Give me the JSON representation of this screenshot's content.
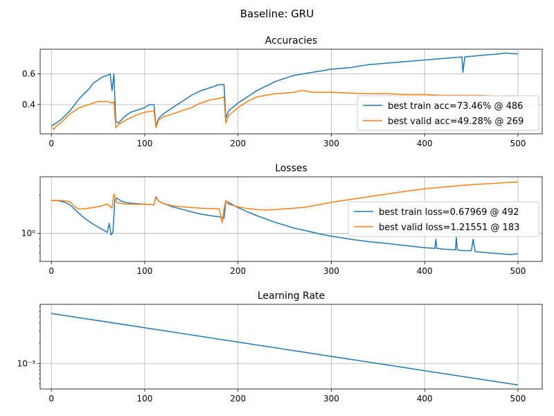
{
  "figure": {
    "suptitle": "Baseline: GRU"
  },
  "colors": {
    "train": "#1f77b4",
    "valid": "#ff7f0e",
    "grid": "#b0b0b0"
  },
  "chart_data": [
    {
      "type": "line",
      "title": "Accuracies",
      "xlabel": "",
      "ylabel": "",
      "xlim": [
        -12,
        526
      ],
      "ylim": [
        0.21,
        0.76
      ],
      "yscale": "linear",
      "xticks": [
        0,
        100,
        200,
        300,
        400,
        500
      ],
      "xtick_labels": [
        "0",
        "100",
        "200",
        "300",
        "400",
        "500"
      ],
      "yticks": [
        0.4,
        0.6
      ],
      "ytick_labels": [
        "0.4",
        "0.6"
      ],
      "grid": true,
      "legend_position": "lower-right",
      "series": [
        {
          "name": "best train acc=73.46% @ 486",
          "color_key": "train",
          "points": [
            [
              0,
              0.26
            ],
            [
              5,
              0.28
            ],
            [
              10,
              0.3
            ],
            [
              15,
              0.33
            ],
            [
              20,
              0.36
            ],
            [
              25,
              0.4
            ],
            [
              30,
              0.44
            ],
            [
              35,
              0.47
            ],
            [
              40,
              0.5
            ],
            [
              45,
              0.54
            ],
            [
              50,
              0.56
            ],
            [
              55,
              0.58
            ],
            [
              60,
              0.59
            ],
            [
              63,
              0.6
            ],
            [
              65,
              0.49
            ],
            [
              67,
              0.6
            ],
            [
              69,
              0.29
            ],
            [
              72,
              0.28
            ],
            [
              75,
              0.3
            ],
            [
              80,
              0.33
            ],
            [
              85,
              0.35
            ],
            [
              90,
              0.36
            ],
            [
              95,
              0.37
            ],
            [
              100,
              0.38
            ],
            [
              105,
              0.4
            ],
            [
              110,
              0.4
            ],
            [
              112,
              0.26
            ],
            [
              115,
              0.31
            ],
            [
              120,
              0.34
            ],
            [
              130,
              0.38
            ],
            [
              140,
              0.42
            ],
            [
              150,
              0.46
            ],
            [
              160,
              0.49
            ],
            [
              170,
              0.51
            ],
            [
              180,
              0.53
            ],
            [
              185,
              0.53
            ],
            [
              187,
              0.31
            ],
            [
              190,
              0.36
            ],
            [
              200,
              0.41
            ],
            [
              210,
              0.45
            ],
            [
              220,
              0.49
            ],
            [
              230,
              0.52
            ],
            [
              240,
              0.55
            ],
            [
              250,
              0.57
            ],
            [
              260,
              0.59
            ],
            [
              270,
              0.6
            ],
            [
              280,
              0.61
            ],
            [
              290,
              0.62
            ],
            [
              300,
              0.63
            ],
            [
              320,
              0.64
            ],
            [
              340,
              0.66
            ],
            [
              360,
              0.67
            ],
            [
              380,
              0.68
            ],
            [
              400,
              0.69
            ],
            [
              420,
              0.7
            ],
            [
              440,
              0.71
            ],
            [
              441,
              0.61
            ],
            [
              443,
              0.71
            ],
            [
              460,
              0.72
            ],
            [
              480,
              0.73
            ],
            [
              486,
              0.735
            ],
            [
              500,
              0.73
            ]
          ]
        },
        {
          "name": "best valid acc=49.28% @ 269",
          "color_key": "valid",
          "points": [
            [
              0,
              0.25
            ],
            [
              3,
              0.24
            ],
            [
              5,
              0.26
            ],
            [
              10,
              0.28
            ],
            [
              15,
              0.31
            ],
            [
              20,
              0.34
            ],
            [
              25,
              0.36
            ],
            [
              30,
              0.38
            ],
            [
              35,
              0.39
            ],
            [
              40,
              0.4
            ],
            [
              45,
              0.41
            ],
            [
              50,
              0.42
            ],
            [
              55,
              0.42
            ],
            [
              60,
              0.42
            ],
            [
              65,
              0.41
            ],
            [
              67,
              0.42
            ],
            [
              69,
              0.25
            ],
            [
              72,
              0.27
            ],
            [
              80,
              0.3
            ],
            [
              90,
              0.33
            ],
            [
              100,
              0.35
            ],
            [
              110,
              0.36
            ],
            [
              112,
              0.25
            ],
            [
              115,
              0.3
            ],
            [
              120,
              0.32
            ],
            [
              130,
              0.34
            ],
            [
              140,
              0.36
            ],
            [
              150,
              0.38
            ],
            [
              160,
              0.41
            ],
            [
              170,
              0.43
            ],
            [
              180,
              0.44
            ],
            [
              185,
              0.45
            ],
            [
              187,
              0.28
            ],
            [
              190,
              0.33
            ],
            [
              200,
              0.38
            ],
            [
              210,
              0.42
            ],
            [
              220,
              0.45
            ],
            [
              230,
              0.46
            ],
            [
              240,
              0.47
            ],
            [
              250,
              0.475
            ],
            [
              260,
              0.48
            ],
            [
              269,
              0.4928
            ],
            [
              280,
              0.48
            ],
            [
              300,
              0.48
            ],
            [
              320,
              0.475
            ],
            [
              340,
              0.47
            ],
            [
              360,
              0.47
            ],
            [
              380,
              0.465
            ],
            [
              400,
              0.465
            ],
            [
              420,
              0.46
            ],
            [
              440,
              0.46
            ],
            [
              460,
              0.46
            ],
            [
              480,
              0.455
            ],
            [
              500,
              0.455
            ]
          ]
        }
      ]
    },
    {
      "type": "line",
      "title": "Losses",
      "xlabel": "",
      "ylabel": "",
      "xlim": [
        -12,
        526
      ],
      "ylim": [
        0.6,
        2.8
      ],
      "yscale": "log",
      "xticks": [
        0,
        100,
        200,
        300,
        400,
        500
      ],
      "xtick_labels": [
        "0",
        "100",
        "200",
        "300",
        "400",
        "500"
      ],
      "yticks": [
        1.0
      ],
      "ytick_labels": [
        "10⁰"
      ],
      "grid": true,
      "legend_position": "right",
      "series": [
        {
          "name": "best train loss=0.67969 @ 492",
          "color_key": "train",
          "points": [
            [
              0,
              1.82
            ],
            [
              5,
              1.82
            ],
            [
              10,
              1.8
            ],
            [
              15,
              1.75
            ],
            [
              20,
              1.68
            ],
            [
              25,
              1.55
            ],
            [
              30,
              1.43
            ],
            [
              35,
              1.33
            ],
            [
              40,
              1.25
            ],
            [
              45,
              1.18
            ],
            [
              50,
              1.12
            ],
            [
              55,
              1.07
            ],
            [
              60,
              1.02
            ],
            [
              62,
              1.2
            ],
            [
              64,
              0.97
            ],
            [
              66,
              1.02
            ],
            [
              68,
              1.85
            ],
            [
              70,
              1.9
            ],
            [
              75,
              1.8
            ],
            [
              80,
              1.75
            ],
            [
              90,
              1.72
            ],
            [
              100,
              1.7
            ],
            [
              110,
              1.68
            ],
            [
              112,
              1.95
            ],
            [
              115,
              1.8
            ],
            [
              120,
              1.72
            ],
            [
              130,
              1.62
            ],
            [
              140,
              1.55
            ],
            [
              150,
              1.48
            ],
            [
              160,
              1.42
            ],
            [
              170,
              1.38
            ],
            [
              180,
              1.35
            ],
            [
              185,
              1.32
            ],
            [
              187,
              1.8
            ],
            [
              190,
              1.75
            ],
            [
              200,
              1.6
            ],
            [
              210,
              1.48
            ],
            [
              220,
              1.38
            ],
            [
              230,
              1.3
            ],
            [
              240,
              1.22
            ],
            [
              250,
              1.16
            ],
            [
              260,
              1.1
            ],
            [
              270,
              1.06
            ],
            [
              280,
              1.02
            ],
            [
              290,
              0.98
            ],
            [
              300,
              0.95
            ],
            [
              320,
              0.9
            ],
            [
              340,
              0.86
            ],
            [
              360,
              0.83
            ],
            [
              380,
              0.8
            ],
            [
              400,
              0.77
            ],
            [
              411,
              0.76
            ],
            [
              412,
              0.9
            ],
            [
              413,
              0.76
            ],
            [
              420,
              0.75
            ],
            [
              433,
              0.74
            ],
            [
              434,
              0.93
            ],
            [
              435,
              0.74
            ],
            [
              440,
              0.73
            ],
            [
              450,
              0.73
            ],
            [
              452,
              0.9
            ],
            [
              454,
              0.72
            ],
            [
              460,
              0.71
            ],
            [
              480,
              0.69
            ],
            [
              492,
              0.6797
            ],
            [
              500,
              0.69
            ]
          ]
        },
        {
          "name": "best valid loss=1.21551 @ 183",
          "color_key": "valid",
          "points": [
            [
              0,
              1.82
            ],
            [
              10,
              1.82
            ],
            [
              20,
              1.78
            ],
            [
              25,
              1.62
            ],
            [
              30,
              1.55
            ],
            [
              40,
              1.58
            ],
            [
              50,
              1.62
            ],
            [
              60,
              1.7
            ],
            [
              65,
              1.58
            ],
            [
              67,
              2.05
            ],
            [
              70,
              1.75
            ],
            [
              80,
              1.7
            ],
            [
              90,
              1.7
            ],
            [
              100,
              1.7
            ],
            [
              110,
              1.68
            ],
            [
              112,
              1.92
            ],
            [
              115,
              1.8
            ],
            [
              120,
              1.72
            ],
            [
              130,
              1.65
            ],
            [
              140,
              1.62
            ],
            [
              150,
              1.6
            ],
            [
              160,
              1.58
            ],
            [
              170,
              1.57
            ],
            [
              180,
              1.56
            ],
            [
              183,
              1.2155
            ],
            [
              185,
              1.56
            ],
            [
              187,
              1.82
            ],
            [
              190,
              1.7
            ],
            [
              200,
              1.62
            ],
            [
              210,
              1.57
            ],
            [
              220,
              1.54
            ],
            [
              230,
              1.53
            ],
            [
              240,
              1.54
            ],
            [
              250,
              1.56
            ],
            [
              260,
              1.58
            ],
            [
              270,
              1.6
            ],
            [
              280,
              1.65
            ],
            [
              290,
              1.7
            ],
            [
              300,
              1.76
            ],
            [
              320,
              1.85
            ],
            [
              340,
              1.95
            ],
            [
              360,
              2.05
            ],
            [
              380,
              2.15
            ],
            [
              400,
              2.25
            ],
            [
              420,
              2.32
            ],
            [
              440,
              2.4
            ],
            [
              460,
              2.45
            ],
            [
              480,
              2.5
            ],
            [
              500,
              2.55
            ]
          ]
        }
      ]
    },
    {
      "type": "line",
      "title": "Learning Rate",
      "xlabel": "",
      "ylabel": "",
      "xlim": [
        -12,
        526
      ],
      "ylim": [
        0.00042,
        0.0075
      ],
      "yscale": "log",
      "xticks": [
        0,
        100,
        200,
        300,
        400,
        500
      ],
      "xtick_labels": [
        "0",
        "100",
        "200",
        "300",
        "400",
        "500"
      ],
      "yticks": [
        0.001
      ],
      "ytick_labels": [
        "10⁻³"
      ],
      "grid": true,
      "legend_position": "none",
      "series": [
        {
          "name": "",
          "color_key": "train",
          "points": [
            [
              0,
              0.0055
            ],
            [
              500,
              0.00048
            ]
          ]
        }
      ]
    }
  ]
}
